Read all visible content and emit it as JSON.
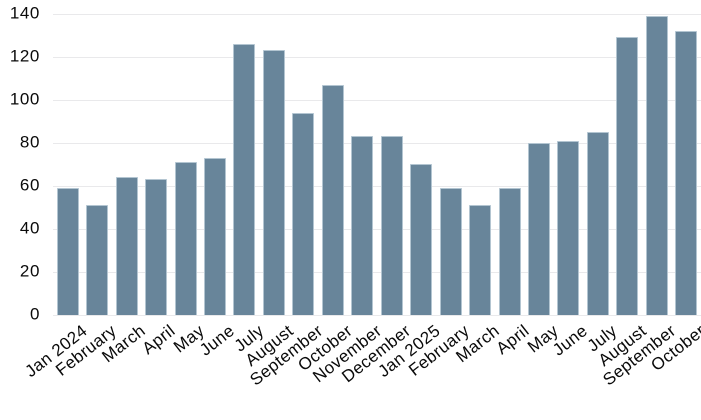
{
  "chart_data": {
    "type": "bar",
    "title": "",
    "xlabel": "",
    "ylabel": "",
    "categories": [
      "Jan 2024",
      "February",
      "March",
      "April",
      "May",
      "June",
      "July",
      "August",
      "September",
      "October",
      "November",
      "December",
      "Jan 2025",
      "February",
      "March",
      "April",
      "May",
      "June",
      "July",
      "August",
      "September",
      "October"
    ],
    "values": [
      59,
      51,
      64,
      63,
      71,
      73,
      126,
      123,
      94,
      107,
      83,
      83,
      70,
      59,
      51,
      59,
      80,
      81,
      85,
      129,
      139,
      132
    ],
    "ylim": [
      0,
      140
    ],
    "yticks": [
      0,
      20,
      40,
      60,
      80,
      100,
      120,
      140
    ],
    "grid": "horizontal",
    "legend_position": "none",
    "x_label_rotation_deg": -38,
    "colors": {
      "bar_fill": "#68859A",
      "bar_edge": "#B3C5D1",
      "gridline": "#E9E9EB",
      "text": "#0A0A0A",
      "background": "#FFFFFF"
    }
  }
}
